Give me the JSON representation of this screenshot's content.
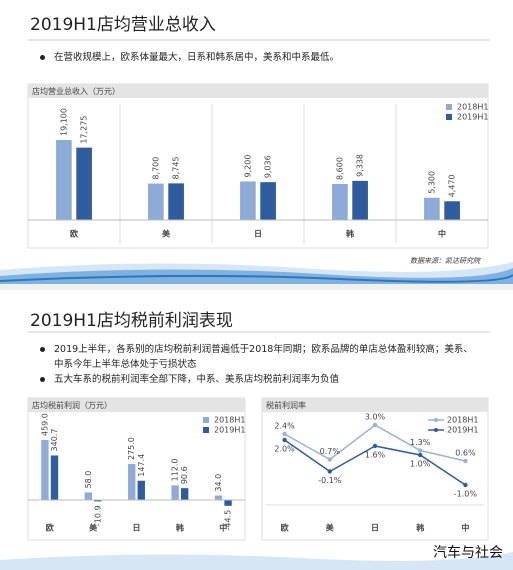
{
  "slides": [
    {
      "title": "2019H1店均营业总收入",
      "bullets": [
        "在营收规模上，欧系体量最大，日系和韩系居中，美系和中系最低。"
      ]
    },
    {
      "title": "2019H1店均税前利润表现",
      "bullets": [
        "2019上半年，各系别的店均税前利润普遍低于2018年同期；欧系品牌的单店总体盈利较高；美系、中系今年上半年总体处于亏损状态",
        "五大车系的税前利润率全部下降，中系、美系店均税前利润率为负值"
      ]
    }
  ],
  "source": "数据来源：凯达研究院",
  "watermark": "汽车与社会",
  "chart_data": [
    {
      "type": "bar",
      "title": "店均营业总收入（万元）",
      "categories": [
        "欧",
        "美",
        "日",
        "韩",
        "中"
      ],
      "series": [
        {
          "name": "2018H1",
          "color": "#8eaad6",
          "values": [
            19100,
            8700,
            9200,
            8600,
            5300
          ],
          "value_labels": [
            "19,100",
            "8,700",
            "9,200",
            "8,600",
            "5,300"
          ]
        },
        {
          "name": "2019H1",
          "color": "#2e5c9e",
          "values": [
            17275,
            8745,
            9036,
            9338,
            4470
          ],
          "value_labels": [
            "17,275",
            "8,745",
            "9,036",
            "9,338",
            "4,470"
          ]
        }
      ]
    },
    {
      "type": "bar",
      "title": "店均税前利润（万元）",
      "categories": [
        "欧",
        "美",
        "日",
        "韩",
        "中"
      ],
      "series": [
        {
          "name": "2018H1",
          "color": "#8eaad6",
          "values": [
            459.0,
            58.0,
            275.0,
            112.0,
            34.0
          ],
          "value_labels": [
            "459.0",
            "58.0",
            "275.0",
            "112.0",
            "34.0"
          ]
        },
        {
          "name": "2019H1",
          "color": "#2e5c9e",
          "values": [
            340.7,
            -10.9,
            147.4,
            90.6,
            -44.5
          ]
        }
      ]
    },
    {
      "type": "line",
      "title": "税前利润率",
      "categories": [
        "欧",
        "美",
        "日",
        "韩",
        "中"
      ],
      "series": [
        {
          "name": "2018H1",
          "color": "#9bb2d8",
          "values": [
            2.4,
            0.7,
            3.0,
            1.3,
            0.6
          ],
          "value_labels": [
            "2.4%",
            "0.7%",
            "3.0%",
            "1.3%",
            "0.6%"
          ]
        },
        {
          "name": "2019H1",
          "color": "#2e5c9e",
          "values": [
            2.0,
            -0.1,
            1.6,
            1.0,
            -1.0
          ],
          "value_labels": [
            "2.0%",
            "-0.1%",
            "1.6%",
            "1.0%",
            "-1.0%"
          ]
        }
      ]
    }
  ]
}
